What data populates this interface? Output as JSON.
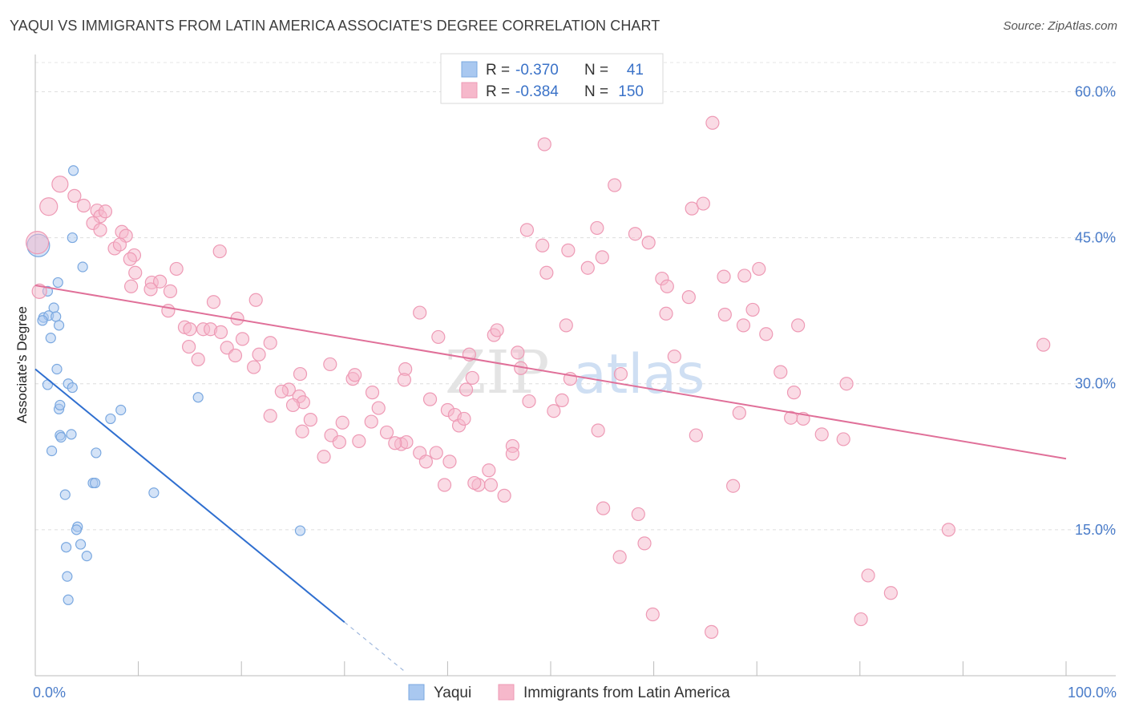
{
  "title": "YAQUI VS IMMIGRANTS FROM LATIN AMERICA ASSOCIATE'S DEGREE CORRELATION CHART",
  "source": "Source: ZipAtlas.com",
  "watermark": {
    "part1": "ZIP",
    "part2": "atlas"
  },
  "legend": {
    "rows": [
      {
        "r_label": "R =",
        "r_value": "-0.370",
        "n_label": "N =",
        "n_value": "41",
        "color": "#a9c8f0"
      },
      {
        "r_label": "R =",
        "r_value": "-0.384",
        "n_label": "N =",
        "n_value": "150",
        "color": "#f6b8cb"
      }
    ]
  },
  "chart_data": {
    "type": "scatter",
    "xlabel": "",
    "ylabel": "Associate's Degree",
    "xlim": [
      0,
      100
    ],
    "ylim": [
      0,
      63
    ],
    "x_tick_labels": [
      "0.0%",
      "100.0%"
    ],
    "y_ticks": [
      15,
      30,
      45,
      60
    ],
    "y_tick_labels": [
      "15.0%",
      "30.0%",
      "45.0%",
      "60.0%"
    ],
    "grid": "horizontal dashed",
    "legend_position": "top-center",
    "series": [
      {
        "name": "Yaqui",
        "color": "#a9c8f0",
        "stroke": "#7aa8e0",
        "trend": {
          "x0": 0,
          "y0": 31.5,
          "x1": 30,
          "y1": 5.5,
          "dash_to_x": 36,
          "color": "#2f6fd0"
        },
        "points": [
          [
            0.3,
            44.2,
            14
          ],
          [
            1.2,
            39.5,
            6
          ],
          [
            1.8,
            37.8,
            6
          ],
          [
            0.8,
            36.8,
            6
          ],
          [
            1.3,
            37.0,
            6
          ],
          [
            2.0,
            36.9,
            6
          ],
          [
            0.7,
            36.5,
            6
          ],
          [
            2.3,
            36.0,
            6
          ],
          [
            1.5,
            34.7,
            6
          ],
          [
            2.2,
            40.4,
            6
          ],
          [
            3.6,
            45.0,
            6
          ],
          [
            3.7,
            51.9,
            6
          ],
          [
            4.6,
            42.0,
            6
          ],
          [
            2.1,
            31.5,
            6
          ],
          [
            1.2,
            29.9,
            6
          ],
          [
            3.2,
            30.0,
            6
          ],
          [
            3.6,
            29.6,
            6
          ],
          [
            2.3,
            27.4,
            6
          ],
          [
            2.4,
            27.8,
            6
          ],
          [
            8.3,
            27.3,
            6
          ],
          [
            7.3,
            26.4,
            6
          ],
          [
            15.8,
            28.6,
            6
          ],
          [
            2.4,
            24.7,
            6
          ],
          [
            3.5,
            24.8,
            6
          ],
          [
            2.5,
            24.5,
            6
          ],
          [
            1.6,
            23.1,
            6
          ],
          [
            5.9,
            22.9,
            6
          ],
          [
            5.6,
            19.8,
            6
          ],
          [
            5.8,
            19.8,
            6
          ],
          [
            2.9,
            18.6,
            6
          ],
          [
            11.5,
            18.8,
            6
          ],
          [
            4.1,
            15.3,
            6
          ],
          [
            4.0,
            15.0,
            6
          ],
          [
            25.7,
            14.9,
            6
          ],
          [
            3.0,
            13.2,
            6
          ],
          [
            4.4,
            13.5,
            6
          ],
          [
            5.0,
            12.3,
            6
          ],
          [
            3.1,
            10.2,
            6
          ],
          [
            3.2,
            7.8,
            6
          ]
        ]
      },
      {
        "name": "Immigrants from Latin America",
        "color": "#f6b8cb",
        "stroke": "#ee9ab5",
        "trend": {
          "x0": 0,
          "y0": 40.1,
          "x1": 100,
          "y1": 22.3,
          "color": "#e07099"
        },
        "points": [
          [
            0.2,
            44.5,
            14
          ],
          [
            0.4,
            39.5,
            9
          ],
          [
            1.3,
            48.2,
            11
          ],
          [
            2.4,
            50.5,
            10
          ],
          [
            3.8,
            49.3,
            8
          ],
          [
            4.7,
            48.3,
            8
          ],
          [
            6.0,
            47.8,
            8
          ],
          [
            6.3,
            47.2,
            8
          ],
          [
            5.6,
            46.5,
            8
          ],
          [
            6.3,
            45.8,
            8
          ],
          [
            8.4,
            45.6,
            8
          ],
          [
            8.8,
            45.2,
            8
          ],
          [
            7.7,
            43.9,
            8
          ],
          [
            6.8,
            47.7,
            8
          ],
          [
            8.2,
            44.3,
            8
          ],
          [
            9.6,
            43.2,
            8
          ],
          [
            9.2,
            42.8,
            8
          ],
          [
            13.7,
            41.8,
            8
          ],
          [
            9.7,
            41.4,
            8
          ],
          [
            11.3,
            40.4,
            8
          ],
          [
            12.1,
            40.5,
            8
          ],
          [
            9.3,
            40.0,
            8
          ],
          [
            11.2,
            39.7,
            8
          ],
          [
            13.1,
            39.5,
            8
          ],
          [
            17.9,
            43.6,
            8
          ],
          [
            17.3,
            38.4,
            8
          ],
          [
            21.4,
            38.6,
            8
          ],
          [
            12.9,
            37.5,
            8
          ],
          [
            19.6,
            36.7,
            8
          ],
          [
            14.5,
            35.8,
            8
          ],
          [
            15.0,
            35.6,
            8
          ],
          [
            16.3,
            35.6,
            8
          ],
          [
            17.0,
            35.6,
            8
          ],
          [
            18.0,
            35.3,
            8
          ],
          [
            20.1,
            34.6,
            8
          ],
          [
            14.9,
            33.8,
            8
          ],
          [
            18.6,
            33.7,
            8
          ],
          [
            19.4,
            32.9,
            8
          ],
          [
            15.8,
            32.5,
            8
          ],
          [
            21.7,
            33.0,
            8
          ],
          [
            21.2,
            31.7,
            8
          ],
          [
            22.8,
            34.2,
            8
          ],
          [
            25.7,
            31.0,
            8
          ],
          [
            28.6,
            32.0,
            8
          ],
          [
            30.8,
            30.5,
            8
          ],
          [
            31.0,
            30.9,
            8
          ],
          [
            24.6,
            29.4,
            8
          ],
          [
            23.9,
            29.2,
            8
          ],
          [
            25.6,
            28.7,
            8
          ],
          [
            26.0,
            28.1,
            8
          ],
          [
            25.0,
            27.8,
            8
          ],
          [
            22.8,
            26.7,
            8
          ],
          [
            26.7,
            26.3,
            8
          ],
          [
            29.8,
            26.0,
            8
          ],
          [
            32.6,
            26.1,
            8
          ],
          [
            28.7,
            24.7,
            8
          ],
          [
            31.4,
            24.1,
            8
          ],
          [
            29.5,
            24.0,
            8
          ],
          [
            25.9,
            25.1,
            8
          ],
          [
            28.0,
            22.5,
            8
          ],
          [
            32.7,
            29.1,
            8
          ],
          [
            33.3,
            27.5,
            8
          ],
          [
            34.1,
            25.0,
            8
          ],
          [
            35.5,
            23.8,
            8
          ],
          [
            36.0,
            24.0,
            8
          ],
          [
            34.9,
            23.9,
            8
          ],
          [
            35.9,
            31.5,
            8
          ],
          [
            35.8,
            30.4,
            8
          ],
          [
            37.3,
            37.3,
            8
          ],
          [
            38.3,
            28.4,
            8
          ],
          [
            37.3,
            22.9,
            8
          ],
          [
            38.9,
            22.9,
            8
          ],
          [
            37.9,
            22.0,
            8
          ],
          [
            40.2,
            22.0,
            8
          ],
          [
            40.0,
            27.3,
            8
          ],
          [
            39.1,
            34.8,
            8
          ],
          [
            39.7,
            19.6,
            8
          ],
          [
            40.7,
            26.8,
            8
          ],
          [
            41.1,
            25.7,
            8
          ],
          [
            41.8,
            29.4,
            8
          ],
          [
            41.6,
            26.4,
            8
          ],
          [
            42.4,
            30.6,
            8
          ],
          [
            42.1,
            33.0,
            8
          ],
          [
            43.0,
            19.6,
            8
          ],
          [
            42.6,
            19.8,
            8
          ],
          [
            44.2,
            19.6,
            8
          ],
          [
            45.5,
            18.5,
            8
          ],
          [
            44.0,
            21.1,
            8
          ],
          [
            44.5,
            35.0,
            8
          ],
          [
            44.8,
            35.5,
            8
          ],
          [
            46.3,
            23.6,
            8
          ],
          [
            46.3,
            22.8,
            8
          ],
          [
            46.8,
            33.2,
            8
          ],
          [
            47.1,
            31.6,
            8
          ],
          [
            47.7,
            45.8,
            8
          ],
          [
            47.9,
            28.2,
            8
          ],
          [
            49.2,
            44.2,
            8
          ],
          [
            49.6,
            41.4,
            8
          ],
          [
            50.3,
            27.2,
            8
          ],
          [
            51.1,
            28.3,
            8
          ],
          [
            51.5,
            36.0,
            8
          ],
          [
            51.7,
            43.7,
            8
          ],
          [
            51.9,
            30.5,
            8
          ],
          [
            49.4,
            54.6,
            8
          ],
          [
            53.6,
            41.9,
            8
          ],
          [
            54.5,
            46.0,
            8
          ],
          [
            55.0,
            43.0,
            8
          ],
          [
            54.6,
            25.2,
            8
          ],
          [
            55.1,
            17.2,
            8
          ],
          [
            56.2,
            50.4,
            8
          ],
          [
            56.7,
            12.2,
            8
          ],
          [
            56.8,
            31.0,
            8
          ],
          [
            58.2,
            45.4,
            8
          ],
          [
            58.5,
            16.6,
            8
          ],
          [
            59.1,
            13.6,
            8
          ],
          [
            59.5,
            44.5,
            8
          ],
          [
            59.9,
            6.3,
            8
          ],
          [
            60.8,
            40.8,
            8
          ],
          [
            61.3,
            40.0,
            8
          ],
          [
            61.2,
            37.2,
            8
          ],
          [
            62.0,
            32.8,
            8
          ],
          [
            63.4,
            38.9,
            8
          ],
          [
            63.7,
            48.0,
            8
          ],
          [
            64.1,
            24.7,
            8
          ],
          [
            64.8,
            48.5,
            8
          ],
          [
            65.6,
            4.5,
            8
          ],
          [
            65.7,
            56.8,
            8
          ],
          [
            66.8,
            41.0,
            8
          ],
          [
            66.9,
            37.1,
            8
          ],
          [
            67.7,
            19.5,
            8
          ],
          [
            68.3,
            27.0,
            8
          ],
          [
            68.8,
            41.1,
            8
          ],
          [
            68.7,
            36.0,
            8
          ],
          [
            69.6,
            37.6,
            8
          ],
          [
            70.2,
            41.8,
            8
          ],
          [
            70.9,
            35.1,
            8
          ],
          [
            72.3,
            31.2,
            8
          ],
          [
            73.3,
            26.5,
            8
          ],
          [
            73.6,
            29.1,
            8
          ],
          [
            74.0,
            36.0,
            8
          ],
          [
            74.5,
            26.4,
            8
          ],
          [
            76.3,
            24.8,
            8
          ],
          [
            78.4,
            24.3,
            8
          ],
          [
            78.7,
            30.0,
            8
          ],
          [
            80.1,
            5.8,
            8
          ],
          [
            80.8,
            10.3,
            8
          ],
          [
            83.0,
            8.5,
            8
          ],
          [
            88.6,
            15.0,
            8
          ],
          [
            97.8,
            34.0,
            8
          ]
        ]
      }
    ]
  },
  "bottom_legend": [
    {
      "label": "Yaqui",
      "color": "#a9c8f0"
    },
    {
      "label": "Immigrants from Latin America",
      "color": "#f6b8cb"
    }
  ]
}
